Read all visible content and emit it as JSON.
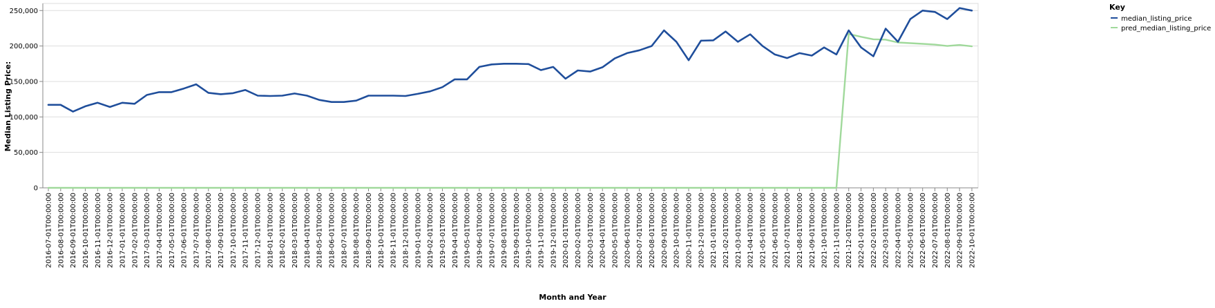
{
  "chart_data": {
    "type": "line",
    "xlabel": "Month and Year",
    "ylabel": "Median Listing Price:",
    "ylim": [
      0,
      260000
    ],
    "yticks": [
      0,
      50000,
      100000,
      150000,
      200000,
      250000
    ],
    "ytick_labels": [
      "0",
      "50,000",
      "100,000",
      "150,000",
      "200,000",
      "250,000"
    ],
    "grid": true,
    "legend_position": "top-right",
    "legend_title": "Key",
    "x": [
      "2016-07-01T00:00:00",
      "2016-08-01T00:00:00",
      "2016-09-01T00:00:00",
      "2016-10-01T00:00:00",
      "2016-11-01T00:00:00",
      "2016-12-01T00:00:00",
      "2017-01-01T00:00:00",
      "2017-02-01T00:00:00",
      "2017-03-01T00:00:00",
      "2017-04-01T00:00:00",
      "2017-05-01T00:00:00",
      "2017-06-01T00:00:00",
      "2017-07-01T00:00:00",
      "2017-08-01T00:00:00",
      "2017-09-01T00:00:00",
      "2017-10-01T00:00:00",
      "2017-11-01T00:00:00",
      "2017-12-01T00:00:00",
      "2018-01-01T00:00:00",
      "2018-02-01T00:00:00",
      "2018-03-01T00:00:00",
      "2018-04-01T00:00:00",
      "2018-05-01T00:00:00",
      "2018-06-01T00:00:00",
      "2018-07-01T00:00:00",
      "2018-08-01T00:00:00",
      "2018-09-01T00:00:00",
      "2018-10-01T00:00:00",
      "2018-11-01T00:00:00",
      "2018-12-01T00:00:00",
      "2019-01-01T00:00:00",
      "2019-02-01T00:00:00",
      "2019-03-01T00:00:00",
      "2019-04-01T00:00:00",
      "2019-05-01T00:00:00",
      "2019-06-01T00:00:00",
      "2019-07-01T00:00:00",
      "2019-08-01T00:00:00",
      "2019-09-01T00:00:00",
      "2019-10-01T00:00:00",
      "2019-11-01T00:00:00",
      "2019-12-01T00:00:00",
      "2020-01-01T00:00:00",
      "2020-02-01T00:00:00",
      "2020-03-01T00:00:00",
      "2020-04-01T00:00:00",
      "2020-05-01T00:00:00",
      "2020-06-01T00:00:00",
      "2020-07-01T00:00:00",
      "2020-08-01T00:00:00",
      "2020-09-01T00:00:00",
      "2020-10-01T00:00:00",
      "2020-11-01T00:00:00",
      "2020-12-01T00:00:00",
      "2021-01-01T00:00:00",
      "2021-02-01T00:00:00",
      "2021-03-01T00:00:00",
      "2021-04-01T00:00:00",
      "2021-05-01T00:00:00",
      "2021-06-01T00:00:00",
      "2021-07-01T00:00:00",
      "2021-08-01T00:00:00",
      "2021-09-01T00:00:00",
      "2021-10-01T00:00:00",
      "2021-11-01T00:00:00",
      "2021-12-01T00:00:00",
      "2022-01-01T00:00:00",
      "2022-02-01T00:00:00",
      "2022-03-01T00:00:00",
      "2022-04-01T00:00:00",
      "2022-05-01T00:00:00",
      "2022-06-01T00:00:00",
      "2022-07-01T00:00:00",
      "2022-08-01T00:00:00",
      "2022-09-01T00:00:00",
      "2022-10-01T00:00:00"
    ],
    "series": [
      {
        "name": "median_listing_price",
        "color": "#1f4e9b",
        "values": [
          117000,
          117000,
          107500,
          115000,
          120000,
          114000,
          120000,
          118500,
          131000,
          135000,
          135000,
          140000,
          146000,
          134000,
          132000,
          133500,
          138000,
          130000,
          129500,
          130000,
          133000,
          130000,
          124000,
          121000,
          121000,
          123000,
          130000,
          130000,
          130000,
          129500,
          132500,
          136000,
          142000,
          153000,
          153000,
          170500,
          174000,
          175000,
          175000,
          174500,
          166000,
          170500,
          154000,
          165500,
          164000,
          170000,
          182500,
          190000,
          194000,
          200000,
          222000,
          206000,
          180000,
          207500,
          208000,
          220500,
          206000,
          216500,
          200000,
          188000,
          183000,
          190000,
          186500,
          198000,
          188000,
          222000,
          198000,
          185500,
          224500,
          206000,
          238000,
          250000,
          248000,
          238000,
          253500,
          250000
        ]
      },
      {
        "name": "pred_median_listing_price",
        "color": "#a0d99b",
        "values": [
          0,
          0,
          0,
          0,
          0,
          0,
          0,
          0,
          0,
          0,
          0,
          0,
          0,
          0,
          0,
          0,
          0,
          0,
          0,
          0,
          0,
          0,
          0,
          0,
          0,
          0,
          0,
          0,
          0,
          0,
          0,
          0,
          0,
          0,
          0,
          0,
          0,
          0,
          0,
          0,
          0,
          0,
          0,
          0,
          0,
          0,
          0,
          0,
          0,
          0,
          0,
          0,
          0,
          0,
          0,
          0,
          0,
          0,
          0,
          0,
          0,
          0,
          0,
          0,
          0,
          217000,
          213000,
          209500,
          209000,
          205000,
          204000,
          203000,
          202000,
          200000,
          201500,
          199500
        ]
      }
    ]
  }
}
